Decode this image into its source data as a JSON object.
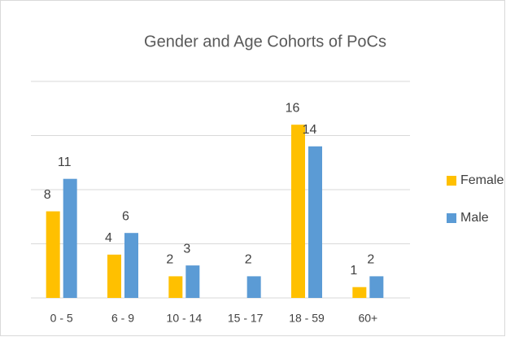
{
  "chart_data": {
    "type": "bar",
    "title": "Gender and Age Cohorts of PoCs",
    "categories": [
      "0 - 5",
      "6 - 9",
      "10 - 14",
      "15 - 17",
      "18 - 59",
      "60+"
    ],
    "series": [
      {
        "name": "Female",
        "color": "#ffc000",
        "values": [
          8,
          4,
          2,
          null,
          16,
          1
        ]
      },
      {
        "name": "Male",
        "color": "#5b9bd5",
        "values": [
          11,
          6,
          3,
          2,
          14,
          2
        ]
      }
    ],
    "ylim": [
      0,
      20
    ],
    "yticks": [
      0,
      5,
      10,
      15,
      20
    ],
    "grid": true,
    "legend": "right"
  }
}
